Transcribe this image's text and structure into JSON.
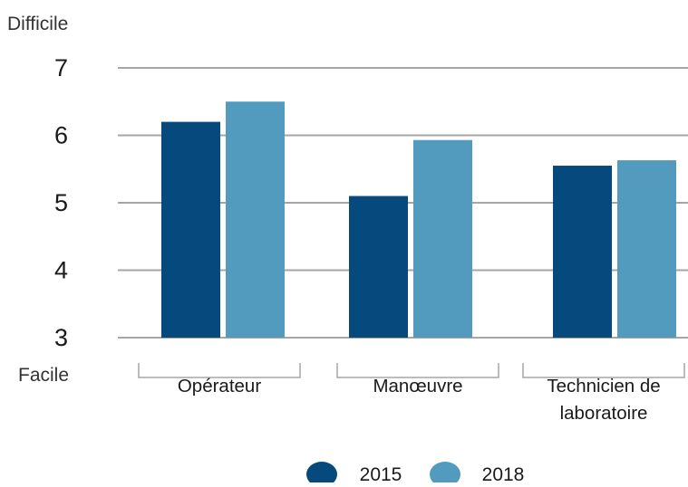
{
  "chart_data": {
    "type": "bar",
    "categories": [
      "Opérateur",
      "Manœuvre",
      "Technicien de laboratoire"
    ],
    "category_lines": [
      [
        "Opérateur"
      ],
      [
        "Manœuvre"
      ],
      [
        "Technicien de",
        "laboratoire"
      ]
    ],
    "series": [
      {
        "name": "2015",
        "values": [
          6.2,
          5.1,
          5.55
        ],
        "color": "#064a7d"
      },
      {
        "name": "2018",
        "values": [
          6.5,
          5.93,
          5.63
        ],
        "color": "#529abe"
      }
    ],
    "y_axis": {
      "ylim": [
        3,
        7
      ],
      "ticks": [
        "3",
        "4",
        "5",
        "6",
        "7"
      ],
      "top_label": "Difficile",
      "bottom_label": "Facile"
    },
    "grid": true,
    "legend_position": "bottom"
  }
}
